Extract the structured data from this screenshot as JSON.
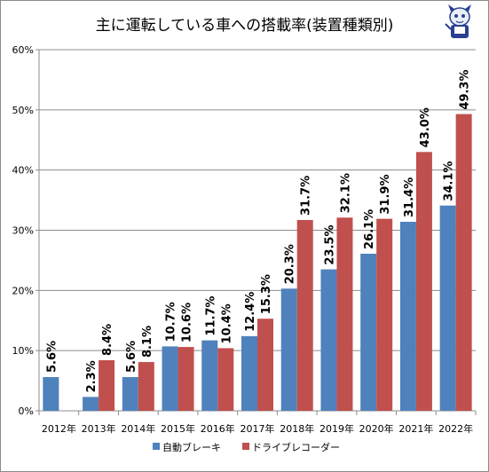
{
  "chart_data": {
    "type": "bar",
    "title": "主に運転している車への搭載率(装置種類別)",
    "categories": [
      "2012年",
      "2013年",
      "2014年",
      "2015年",
      "2016年",
      "2017年",
      "2018年",
      "2019年",
      "2020年",
      "2021年",
      "2022年"
    ],
    "series": [
      {
        "name": "自動ブレーキ",
        "color": "#4f81bd",
        "values": [
          5.6,
          2.3,
          5.6,
          10.7,
          11.7,
          12.4,
          20.3,
          23.5,
          26.1,
          31.4,
          34.1
        ],
        "labels": [
          "5.6%",
          "2.3%",
          "5.6%",
          "10.7%",
          "11.7%",
          "12.4%",
          "20.3%",
          "23.5%",
          "26.1%",
          "31.4%",
          "34.1%"
        ]
      },
      {
        "name": "ドライブレコーダー",
        "color": "#c0504d",
        "values": [
          null,
          8.4,
          8.1,
          10.6,
          10.4,
          15.3,
          31.7,
          32.1,
          31.9,
          43.0,
          49.3
        ],
        "labels": [
          "",
          "8.4%",
          "8.1%",
          "10.6%",
          "10.4%",
          "15.3%",
          "31.7%",
          "32.1%",
          "31.9%",
          "43.0%",
          "49.3%"
        ]
      }
    ],
    "y_ticks": [
      "0%",
      "10%",
      "20%",
      "30%",
      "40%",
      "50%",
      "60%"
    ],
    "ylim": [
      0,
      60
    ],
    "grid": true,
    "legend_position": "bottom"
  },
  "mascot_icon": "mascot-icon"
}
